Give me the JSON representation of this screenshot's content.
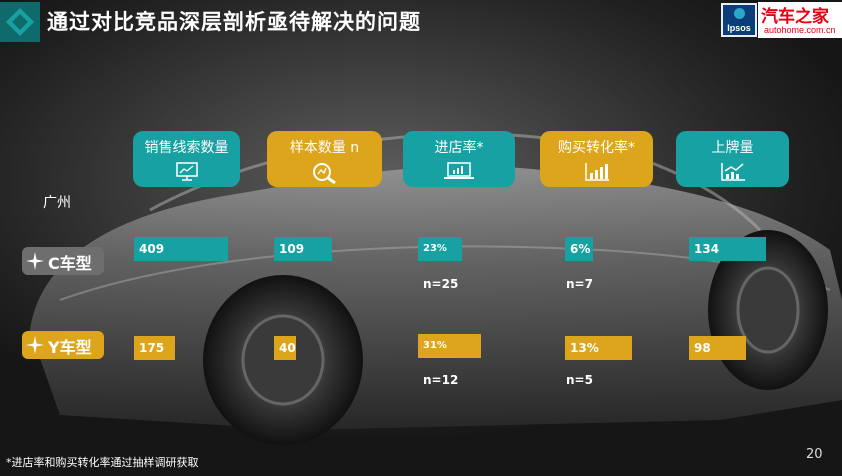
{
  "title": "通过对比竞品深层剖析亟待解决的问题",
  "logos": {
    "ipsos": "Ipsos",
    "autohome_cn": "汽车之家",
    "autohome_url": "autohome.com.cn"
  },
  "city": "广州",
  "headers": [
    {
      "label": "销售线索数量",
      "icon": "monitor-chart-icon",
      "color": "#17a1a3"
    },
    {
      "label": "样本数量 n",
      "icon": "magnifier-chart-icon",
      "color": "#dca51b"
    },
    {
      "label": "进店率*",
      "icon": "laptop-chart-icon",
      "color": "#17a1a3"
    },
    {
      "label": "购买转化率*",
      "icon": "bar-chart-icon",
      "color": "#dca51b"
    },
    {
      "label": "上牌量",
      "icon": "trend-chart-icon",
      "color": "#17a1a3"
    }
  ],
  "rows": {
    "c": {
      "label": "C车型",
      "values": [
        "409",
        "109",
        "23%",
        "6%",
        "134"
      ],
      "n_store": "n=25",
      "n_buy": "n=7"
    },
    "y": {
      "label": "Y车型",
      "values": [
        "175",
        "40",
        "31%",
        "13%",
        "98"
      ],
      "n_store": "n=12",
      "n_buy": "n=5"
    }
  },
  "footnote": "*进店率和购买转化率通过抽样调研获取",
  "page_number": "20"
}
